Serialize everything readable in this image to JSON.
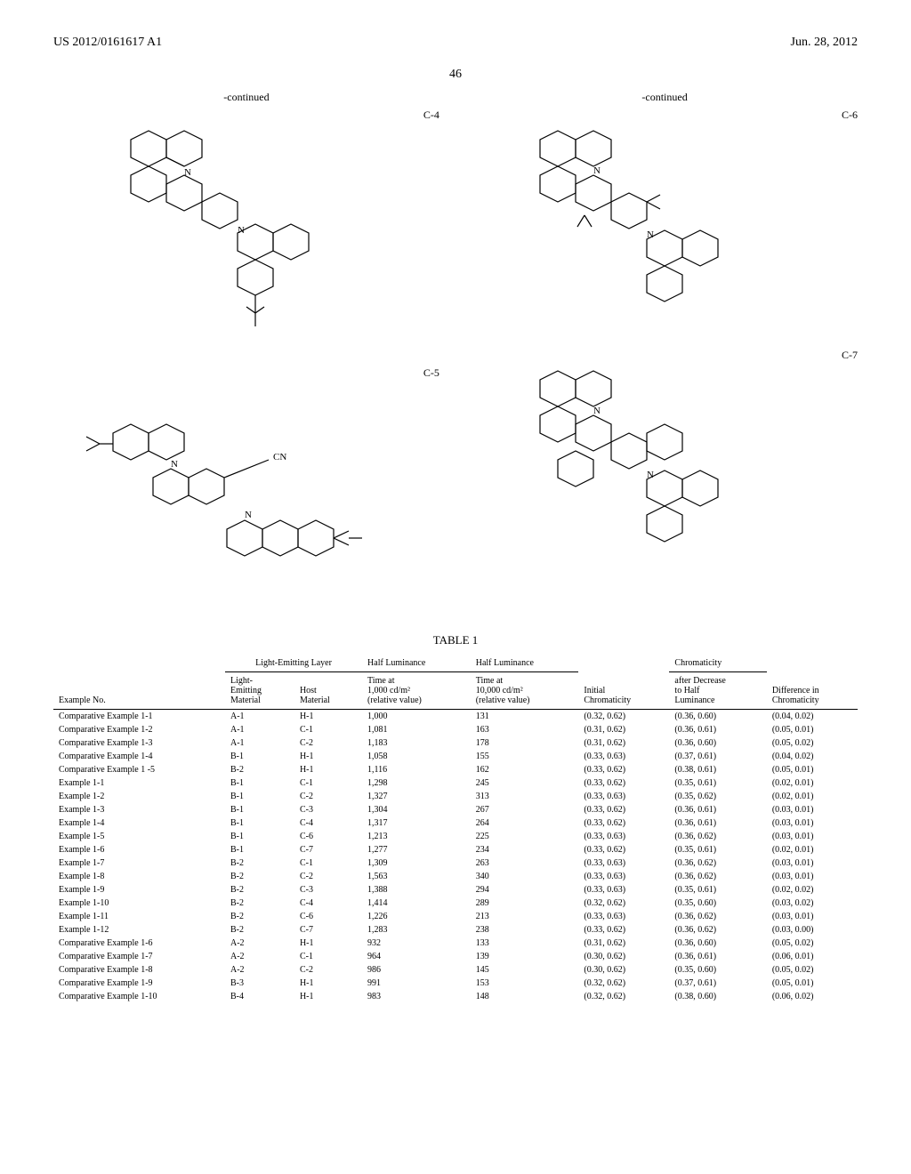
{
  "header": {
    "left": "US 2012/0161617 A1",
    "right": "Jun. 28, 2012"
  },
  "page_number": "46",
  "continued_label": "-continued",
  "diagram_labels": {
    "c4": "C-4",
    "c5": "C-5",
    "c6": "C-6",
    "c7": "C-7"
  },
  "table": {
    "title": "TABLE 1",
    "group_headers": {
      "light_emitting_layer": "Light-Emitting Layer",
      "half_luminance_1": "Half Luminance",
      "half_luminance_2": "Half Luminance",
      "chromaticity": "Chromaticity"
    },
    "columns": {
      "example_no": "Example No.",
      "light_emitting_material": "Light-\nEmitting\nMaterial",
      "host_material": "Host\nMaterial",
      "time_1000": "Time at\n1,000 cd/m²\n(relative value)",
      "time_10000": "Time at\n10,000 cd/m²\n(relative value)",
      "initial_chrom": "Initial\nChromaticity",
      "after_decrease": "after Decrease\nto Half\nLuminance",
      "diff_chrom": "Difference in\nChromaticity"
    },
    "rows": [
      {
        "ex": "Comparative Example 1-1",
        "lem": "A-1",
        "host": "H-1",
        "t1k": "1,000",
        "t10k": "131",
        "ic": "(0.32, 0.62)",
        "ad": "(0.36, 0.60)",
        "dc": "(0.04, 0.02)"
      },
      {
        "ex": "Comparative Example 1-2",
        "lem": "A-1",
        "host": "C-1",
        "t1k": "1,081",
        "t10k": "163",
        "ic": "(0.31, 0.62)",
        "ad": "(0.36, 0.61)",
        "dc": "(0.05, 0.01)"
      },
      {
        "ex": "Comparative Example 1-3",
        "lem": "A-1",
        "host": "C-2",
        "t1k": "1,183",
        "t10k": "178",
        "ic": "(0.31, 0.62)",
        "ad": "(0.36, 0.60)",
        "dc": "(0.05, 0.02)"
      },
      {
        "ex": "Comparative Example 1-4",
        "lem": "B-1",
        "host": "H-1",
        "t1k": "1,058",
        "t10k": "155",
        "ic": "(0.33, 0.63)",
        "ad": "(0.37, 0.61)",
        "dc": "(0.04, 0.02)"
      },
      {
        "ex": "Comparative Example 1 -5",
        "lem": "B-2",
        "host": "H-1",
        "t1k": "1,116",
        "t10k": "162",
        "ic": "(0.33, 0.62)",
        "ad": "(0.38, 0.61)",
        "dc": "(0.05, 0.01)"
      },
      {
        "ex": "Example 1-1",
        "lem": "B-1",
        "host": "C-1",
        "t1k": "1,298",
        "t10k": "245",
        "ic": "(0.33, 0.62)",
        "ad": "(0.35, 0.61)",
        "dc": "(0.02, 0.01)"
      },
      {
        "ex": "Example 1-2",
        "lem": "B-1",
        "host": "C-2",
        "t1k": "1,327",
        "t10k": "313",
        "ic": "(0.33, 0.63)",
        "ad": "(0.35, 0.62)",
        "dc": "(0.02, 0.01)"
      },
      {
        "ex": "Example 1-3",
        "lem": "B-1",
        "host": "C-3",
        "t1k": "1,304",
        "t10k": "267",
        "ic": "(0.33, 0.62)",
        "ad": "(0.36, 0.61)",
        "dc": "(0.03, 0.01)"
      },
      {
        "ex": "Example 1-4",
        "lem": "B-1",
        "host": "C-4",
        "t1k": "1,317",
        "t10k": "264",
        "ic": "(0.33, 0.62)",
        "ad": "(0.36, 0.61)",
        "dc": "(0.03, 0.01)"
      },
      {
        "ex": "Example 1-5",
        "lem": "B-1",
        "host": "C-6",
        "t1k": "1,213",
        "t10k": "225",
        "ic": "(0.33, 0.63)",
        "ad": "(0.36, 0.62)",
        "dc": "(0.03, 0.01)"
      },
      {
        "ex": "Example 1-6",
        "lem": "B-1",
        "host": "C-7",
        "t1k": "1,277",
        "t10k": "234",
        "ic": "(0.33, 0.62)",
        "ad": "(0.35, 0.61)",
        "dc": "(0.02, 0.01)"
      },
      {
        "ex": "Example 1-7",
        "lem": "B-2",
        "host": "C-1",
        "t1k": "1,309",
        "t10k": "263",
        "ic": "(0.33, 0.63)",
        "ad": "(0.36, 0.62)",
        "dc": "(0.03, 0.01)"
      },
      {
        "ex": "Example 1-8",
        "lem": "B-2",
        "host": "C-2",
        "t1k": "1,563",
        "t10k": "340",
        "ic": "(0.33, 0.63)",
        "ad": "(0.36, 0.62)",
        "dc": "(0.03, 0.01)"
      },
      {
        "ex": "Example 1-9",
        "lem": "B-2",
        "host": "C-3",
        "t1k": "1,388",
        "t10k": "294",
        "ic": "(0.33, 0.63)",
        "ad": "(0.35, 0.61)",
        "dc": "(0.02, 0.02)"
      },
      {
        "ex": "Example 1-10",
        "lem": "B-2",
        "host": "C-4",
        "t1k": "1,414",
        "t10k": "289",
        "ic": "(0.32, 0.62)",
        "ad": "(0.35, 0.60)",
        "dc": "(0.03, 0.02)"
      },
      {
        "ex": "Example 1-11",
        "lem": "B-2",
        "host": "C-6",
        "t1k": "1,226",
        "t10k": "213",
        "ic": "(0.33, 0.63)",
        "ad": "(0.36, 0.62)",
        "dc": "(0.03, 0.01)"
      },
      {
        "ex": "Example 1-12",
        "lem": "B-2",
        "host": "C-7",
        "t1k": "1,283",
        "t10k": "238",
        "ic": "(0.33, 0.62)",
        "ad": "(0.36, 0.62)",
        "dc": "(0.03, 0.00)"
      },
      {
        "ex": "Comparative Example 1-6",
        "lem": "A-2",
        "host": "H-1",
        "t1k": "932",
        "t10k": "133",
        "ic": "(0.31, 0.62)",
        "ad": "(0.36, 0.60)",
        "dc": "(0.05, 0.02)"
      },
      {
        "ex": "Comparative Example 1-7",
        "lem": "A-2",
        "host": "C-1",
        "t1k": "964",
        "t10k": "139",
        "ic": "(0.30, 0.62)",
        "ad": "(0.36, 0.61)",
        "dc": "(0.06, 0.01)"
      },
      {
        "ex": "Comparative Example 1-8",
        "lem": "A-2",
        "host": "C-2",
        "t1k": "986",
        "t10k": "145",
        "ic": "(0.30, 0.62)",
        "ad": "(0.35, 0.60)",
        "dc": "(0.05, 0.02)"
      },
      {
        "ex": "Comparative Example 1-9",
        "lem": "B-3",
        "host": "H-1",
        "t1k": "991",
        "t10k": "153",
        "ic": "(0.32, 0.62)",
        "ad": "(0.37, 0.61)",
        "dc": "(0.05, 0.01)"
      },
      {
        "ex": "Comparative Example 1-10",
        "lem": "B-4",
        "host": "H-1",
        "t1k": "983",
        "t10k": "148",
        "ic": "(0.32, 0.62)",
        "ad": "(0.38, 0.60)",
        "dc": "(0.06, 0.02)"
      }
    ]
  },
  "colors": {
    "text": "#000000",
    "bg": "#ffffff",
    "border": "#000000"
  }
}
